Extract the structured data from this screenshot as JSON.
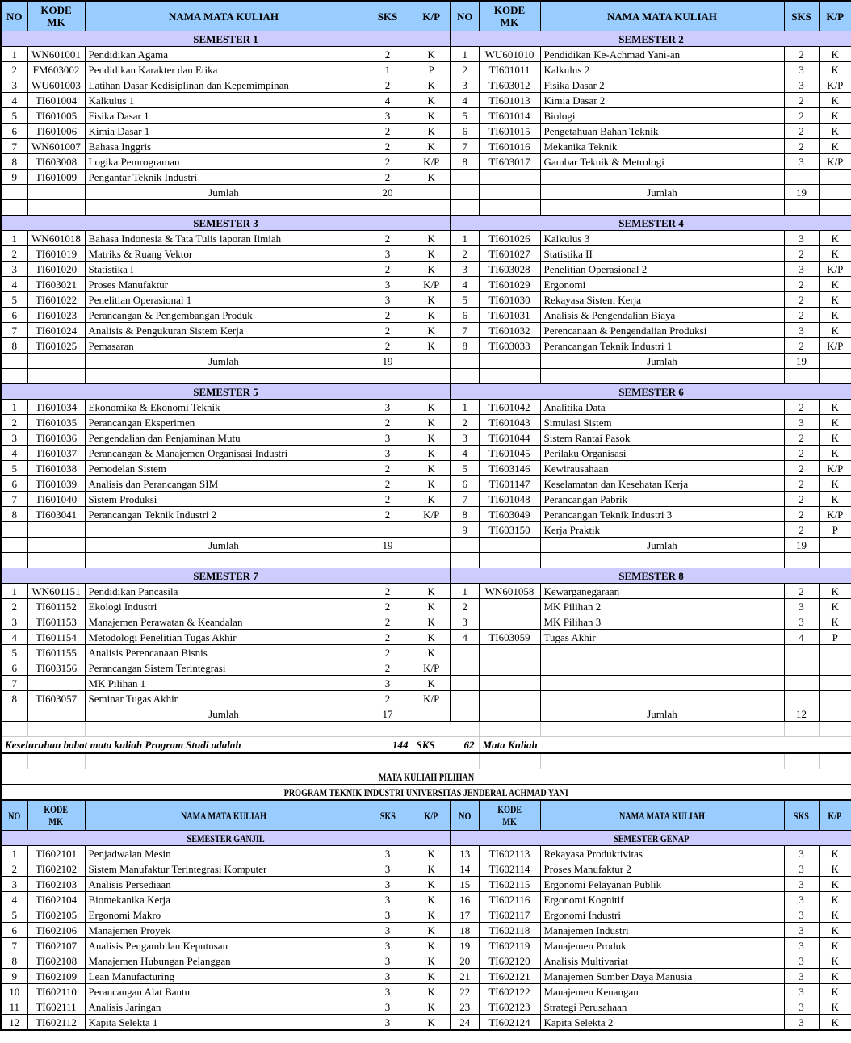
{
  "header": {
    "no": "NO",
    "kode": "KODE\nMK",
    "nama": "NAMA MATA KULIAH",
    "sks": "SKS",
    "kp": "K/P"
  },
  "jumlah_label": "Jumlah",
  "sections": [
    {
      "slots": 9,
      "left": {
        "title": "SEMESTER 1",
        "jumlah": "20",
        "courses": [
          [
            "1",
            "WN601001",
            "Pendidikan Agama",
            "2",
            "K"
          ],
          [
            "2",
            "FM603002",
            "Pendidikan Karakter dan Etika",
            "1",
            "P"
          ],
          [
            "3",
            "WU601003",
            "Latihan Dasar Kedisiplinan dan Kepemimpinan",
            "2",
            "K"
          ],
          [
            "4",
            "TI601004",
            "Kalkulus 1",
            "4",
            "K"
          ],
          [
            "5",
            "TI601005",
            "Fisika Dasar 1",
            "3",
            "K"
          ],
          [
            "6",
            "TI601006",
            "Kimia Dasar 1",
            "2",
            "K"
          ],
          [
            "7",
            "WN601007",
            "Bahasa Inggris",
            "2",
            "K"
          ],
          [
            "8",
            "TI603008",
            "Logika Pemrograman",
            "2",
            "K/P"
          ],
          [
            "9",
            "TI601009",
            "Pengantar Teknik Industri",
            "2",
            "K"
          ]
        ]
      },
      "right": {
        "title": "SEMESTER 2",
        "jumlah": "19",
        "courses": [
          [
            "1",
            "WU601010",
            "Pendidikan Ke-Achmad Yani-an",
            "2",
            "K"
          ],
          [
            "2",
            "TI601011",
            "Kalkulus 2",
            "3",
            "K"
          ],
          [
            "3",
            "TI603012",
            "Fisika Dasar 2",
            "3",
            "K/P"
          ],
          [
            "4",
            "TI601013",
            "Kimia Dasar 2",
            "2",
            "K"
          ],
          [
            "5",
            "TI601014",
            "Biologi",
            "2",
            "K"
          ],
          [
            "6",
            "TI601015",
            "Pengetahuan Bahan Teknik",
            "2",
            "K"
          ],
          [
            "7",
            "TI601016",
            "Mekanika Teknik",
            "2",
            "K"
          ],
          [
            "8",
            "TI603017",
            "Gambar Teknik & Metrologi",
            "3",
            "K/P"
          ]
        ]
      }
    },
    {
      "slots": 8,
      "left": {
        "title": "SEMESTER 3",
        "jumlah": "19",
        "courses": [
          [
            "1",
            "WN601018",
            "Bahasa Indonesia & Tata Tulis laporan Ilmiah",
            "2",
            "K"
          ],
          [
            "2",
            "TI601019",
            "Matriks & Ruang Vektor",
            "3",
            "K"
          ],
          [
            "3",
            "TI601020",
            "Statistika I",
            "2",
            "K"
          ],
          [
            "4",
            "TI603021",
            "Proses Manufaktur",
            "3",
            "K/P"
          ],
          [
            "5",
            "TI601022",
            "Penelitian Operasional 1",
            "3",
            "K"
          ],
          [
            "6",
            "TI601023",
            "Perancangan & Pengembangan Produk",
            "2",
            "K"
          ],
          [
            "7",
            "TI601024",
            "Analisis & Pengukuran Sistem Kerja",
            "2",
            "K"
          ],
          [
            "8",
            "TI601025",
            "Pemasaran",
            "2",
            "K"
          ]
        ]
      },
      "right": {
        "title": "SEMESTER 4",
        "jumlah": "19",
        "courses": [
          [
            "1",
            "TI601026",
            "Kalkulus 3",
            "3",
            "K"
          ],
          [
            "2",
            "TI601027",
            "Statistika II",
            "2",
            "K"
          ],
          [
            "3",
            "TI603028",
            "Penelitian Operasional 2",
            "3",
            "K/P"
          ],
          [
            "4",
            "TI601029",
            "Ergonomi",
            "2",
            "K"
          ],
          [
            "5",
            "TI601030",
            "Rekayasa Sistem Kerja",
            "2",
            "K"
          ],
          [
            "6",
            "TI601031",
            "Analisis & Pengendalian Biaya",
            "2",
            "K"
          ],
          [
            "7",
            "TI601032",
            "Perencanaan & Pengendalian Produksi",
            "3",
            "K"
          ],
          [
            "8",
            "TI603033",
            "Perancangan Teknik Industri 1",
            "2",
            "K/P"
          ]
        ]
      }
    },
    {
      "slots": 9,
      "left": {
        "title": "SEMESTER 5",
        "jumlah": "19",
        "courses": [
          [
            "1",
            "TI601034",
            "Ekonomika & Ekonomi Teknik",
            "3",
            "K"
          ],
          [
            "2",
            "TI601035",
            "Perancangan Eksperimen",
            "2",
            "K"
          ],
          [
            "3",
            "TI601036",
            "Pengendalian dan Penjaminan Mutu",
            "3",
            "K"
          ],
          [
            "4",
            "TI601037",
            "Perancangan & Manajemen Organisasi Industri",
            "3",
            "K"
          ],
          [
            "5",
            "TI601038",
            "Pemodelan Sistem",
            "2",
            "K"
          ],
          [
            "6",
            "TI601039",
            "Analisis dan Perancangan SIM",
            "2",
            "K"
          ],
          [
            "7",
            "TI601040",
            "Sistem Produksi",
            "2",
            "K"
          ],
          [
            "8",
            "TI603041",
            "Perancangan Teknik Industri 2",
            "2",
            "K/P"
          ]
        ]
      },
      "right": {
        "title": "SEMESTER 6",
        "jumlah": "19",
        "courses": [
          [
            "1",
            "TI601042",
            "Analitika Data",
            "2",
            "K"
          ],
          [
            "2",
            "TI601043",
            "Simulasi Sistem",
            "3",
            "K"
          ],
          [
            "3",
            "TI601044",
            "Sistem Rantai Pasok",
            "2",
            "K"
          ],
          [
            "4",
            "TI601045",
            "Perilaku Organisasi",
            "2",
            "K"
          ],
          [
            "5",
            "TI603146",
            "Kewirausahaan",
            "2",
            "K/P"
          ],
          [
            "6",
            "TI601147",
            "Keselamatan dan Kesehatan Kerja",
            "2",
            "K"
          ],
          [
            "7",
            "TI601048",
            "Perancangan Pabrik",
            "2",
            "K"
          ],
          [
            "8",
            "TI603049",
            "Perancangan Teknik Industri 3",
            "2",
            "K/P"
          ],
          [
            "9",
            "TI603150",
            "Kerja Praktik",
            "2",
            "P"
          ]
        ]
      }
    },
    {
      "slots": 8,
      "left": {
        "title": "SEMESTER 7",
        "jumlah": "17",
        "courses": [
          [
            "1",
            "WN601151",
            "Pendidikan Pancasila",
            "2",
            "K"
          ],
          [
            "2",
            "TI601152",
            "Ekologi Industri",
            "2",
            "K"
          ],
          [
            "3",
            "TI601153",
            "Manajemen Perawatan & Keandalan",
            "2",
            "K"
          ],
          [
            "4",
            "TI601154",
            "Metodologi Penelitian Tugas Akhir",
            "2",
            "K"
          ],
          [
            "5",
            "TI601155",
            "Analisis Perencanaan Bisnis",
            "2",
            "K"
          ],
          [
            "6",
            "TI603156",
            "Perancangan Sistem Terintegrasi",
            "2",
            "K/P"
          ],
          [
            "7",
            "",
            "MK Pilihan 1",
            "3",
            "K"
          ],
          [
            "8",
            "TI603057",
            "Seminar Tugas Akhir",
            "2",
            "K/P"
          ]
        ]
      },
      "right": {
        "title": "SEMESTER 8",
        "jumlah": "12",
        "courses": [
          [
            "1",
            "WN601058",
            "Kewarganegaraan",
            "2",
            "K"
          ],
          [
            "2",
            "",
            "MK Pilihan 2",
            "3",
            "K"
          ],
          [
            "3",
            "",
            "MK Pilihan 3",
            "3",
            "K"
          ],
          [
            "4",
            "TI603059",
            "Tugas Akhir",
            "4",
            "P"
          ]
        ]
      }
    }
  ],
  "summary": {
    "label": "Keseluruhan bobot mata kuliah Program Studi adalah",
    "sks_value": "144",
    "sks_label": "SKS",
    "count_value": "62",
    "count_label": "Mata Kuliah"
  },
  "electives": {
    "title": "MATA KULIAH PILIHAN",
    "subtitle": "PROGRAM TEKNIK INDUSTRI UNIVERSITAS JENDERAL ACHMAD YANI",
    "left": {
      "title": "SEMESTER GANJIL",
      "courses": [
        [
          "1",
          "TI602101",
          "Penjadwalan Mesin",
          "3",
          "K"
        ],
        [
          "2",
          "TI602102",
          "Sistem Manufaktur Terintegrasi Komputer",
          "3",
          "K"
        ],
        [
          "3",
          "TI602103",
          "Analisis Persediaan",
          "3",
          "K"
        ],
        [
          "4",
          "TI602104",
          "Biomekanika Kerja",
          "3",
          "K"
        ],
        [
          "5",
          "TI602105",
          "Ergonomi Makro",
          "3",
          "K"
        ],
        [
          "6",
          "TI602106",
          "Manajemen Proyek",
          "3",
          "K"
        ],
        [
          "7",
          "TI602107",
          "Analisis Pengambilan Keputusan",
          "3",
          "K"
        ],
        [
          "8",
          "TI602108",
          "Manajemen Hubungan Pelanggan",
          "3",
          "K"
        ],
        [
          "9",
          "TI602109",
          "Lean Manufacturing",
          "3",
          "K"
        ],
        [
          "10",
          "TI602110",
          "Perancangan Alat Bantu",
          "3",
          "K"
        ],
        [
          "11",
          "TI602111",
          "Analisis Jaringan",
          "3",
          "K"
        ],
        [
          "12",
          "TI602112",
          "Kapita Selekta 1",
          "3",
          "K"
        ]
      ]
    },
    "right": {
      "title": "SEMESTER GENAP",
      "courses": [
        [
          "13",
          "TI602113",
          "Rekayasa Produktivitas",
          "3",
          "K"
        ],
        [
          "14",
          "TI602114",
          "Proses Manufaktur 2",
          "3",
          "K"
        ],
        [
          "15",
          "TI602115",
          "Ergonomi Pelayanan Publik",
          "3",
          "K"
        ],
        [
          "16",
          "TI602116",
          "Ergonomi Kognitif",
          "3",
          "K"
        ],
        [
          "17",
          "TI602117",
          "Ergonomi Industri",
          "3",
          "K"
        ],
        [
          "18",
          "TI602118",
          "Manajemen Industri",
          "3",
          "K"
        ],
        [
          "19",
          "TI602119",
          "Manajemen Produk",
          "3",
          "K"
        ],
        [
          "20",
          "TI602120",
          "Analisis Multivariat",
          "3",
          "K"
        ],
        [
          "21",
          "TI602121",
          "Manajemen Sumber Daya Manusia",
          "3",
          "K"
        ],
        [
          "22",
          "TI602122",
          "Manajemen Keuangan",
          "3",
          "K"
        ],
        [
          "23",
          "TI602123",
          "Strategi Perusahaan",
          "3",
          "K"
        ],
        [
          "24",
          "TI602124",
          "Kapita Selekta 2",
          "3",
          "K"
        ]
      ]
    }
  },
  "colors": {
    "header_bg": "#99CCFF",
    "band_bg": "#CCCCFF"
  }
}
